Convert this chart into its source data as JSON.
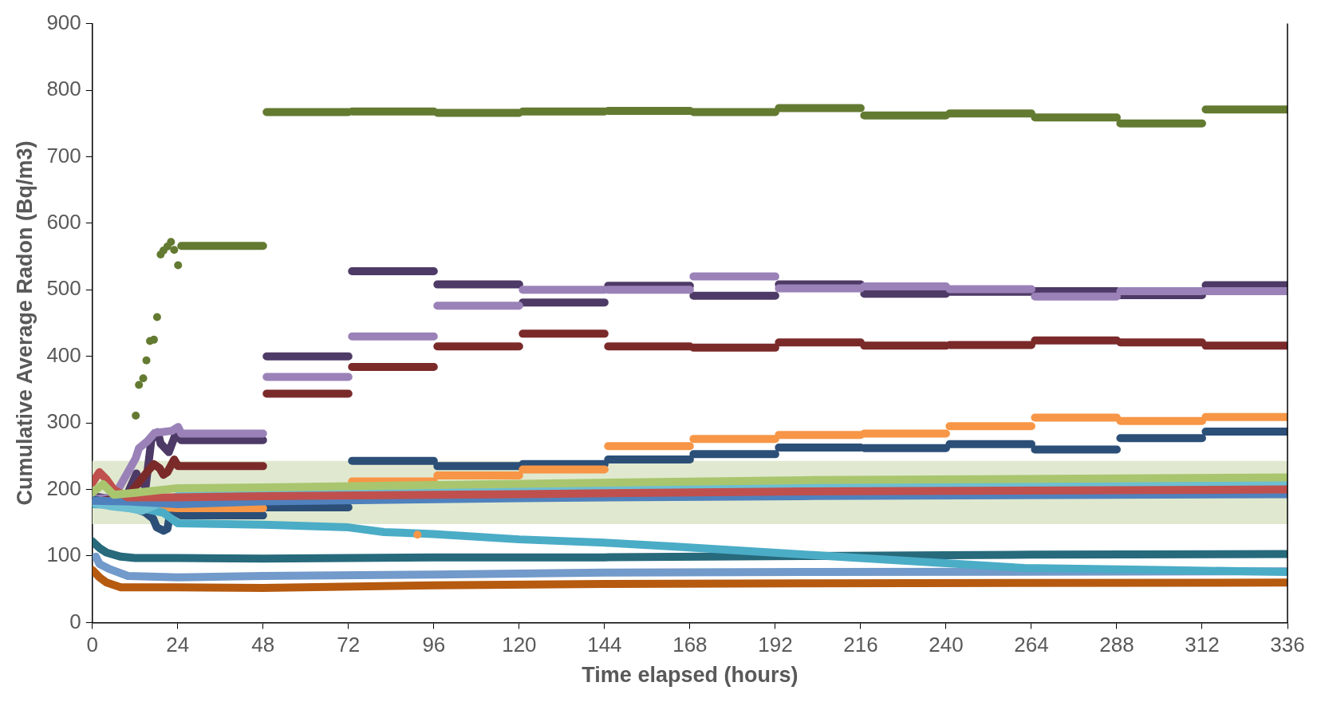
{
  "chart_data": {
    "type": "line",
    "xlabel": "Time elapsed (hours)",
    "ylabel": "Cumulative Average Radon (Bq/m3)",
    "xlim": [
      0,
      336
    ],
    "xticks": [
      0,
      24,
      48,
      72,
      96,
      120,
      144,
      168,
      192,
      216,
      240,
      264,
      288,
      312,
      336
    ],
    "ylim": [
      0,
      900
    ],
    "yticks": [
      0,
      100,
      200,
      300,
      400,
      500,
      600,
      700,
      800,
      900
    ],
    "marker": "none",
    "legend": false,
    "bands": [
      {
        "axis": "y",
        "from": 148,
        "to": 243,
        "color": "#e0e9cf"
      }
    ],
    "series": [
      {
        "type": "scatter",
        "marker": "circle",
        "color": "#f79646",
        "x": [
          91.4
        ],
        "values": [
          132
        ]
      },
      {
        "color": "#a9c66f",
        "x": [
          0,
          3,
          6,
          12,
          24,
          48,
          100,
          200,
          336
        ],
        "values": [
          195,
          208,
          192,
          195,
          202,
          203,
          207,
          214,
          218
        ]
      },
      {
        "color": "#c0504d",
        "x": [
          0,
          2,
          4,
          6,
          10,
          24,
          48,
          120,
          200,
          336
        ],
        "values": [
          210,
          226,
          215,
          200,
          188,
          188,
          190,
          193,
          197,
          200
        ]
      },
      {
        "color": "#4f81bd",
        "x": [
          0,
          10,
          24,
          48,
          120,
          200,
          336
        ],
        "values": [
          183,
          182,
          178,
          182,
          187,
          190,
          193
        ]
      },
      {
        "color": "#6dbfd2",
        "x": [
          0,
          5,
          10,
          14,
          24,
          48,
          96,
          200,
          336
        ],
        "values": [
          180,
          175,
          172,
          168,
          190,
          195,
          200,
          204,
          207
        ]
      },
      {
        "color": "#4bacc6",
        "x": [
          0,
          10,
          20,
          24,
          48,
          72,
          82,
          96,
          120,
          144,
          164,
          213,
          262,
          300,
          336
        ],
        "values": [
          178,
          176,
          165,
          149,
          147,
          143,
          136,
          133,
          125,
          120,
          114,
          98,
          82,
          79,
          76
        ]
      },
      {
        "color": "#276a7c",
        "x": [
          0,
          2,
          4,
          8,
          12,
          24,
          48,
          96,
          144,
          200,
          264,
          336
        ],
        "values": [
          122,
          112,
          105,
          99,
          97,
          97,
          96,
          98,
          98,
          100,
          102,
          103
        ]
      },
      {
        "color": "#729aca",
        "x": [
          1,
          2,
          5,
          10,
          24,
          48,
          96,
          144,
          200,
          336
        ],
        "values": [
          99,
          88,
          80,
          70,
          68,
          70,
          72,
          75,
          76,
          77
        ]
      },
      {
        "color": "#b65a10",
        "x": [
          0,
          2,
          4,
          8,
          24,
          48,
          96,
          144,
          200,
          336
        ],
        "values": [
          79,
          68,
          60,
          53,
          53,
          52,
          56,
          58,
          59,
          60
        ]
      },
      {
        "color": "#f79646",
        "x": [
          17.7,
          24,
          25,
          48,
          48.5,
          49,
          72,
          72.5,
          73,
          96,
          96.5,
          97,
          120,
          120.5,
          121,
          144,
          144.5,
          145,
          168,
          168.5,
          169,
          192,
          192.5,
          193,
          216,
          216.5,
          217,
          240,
          240.5,
          241,
          264,
          264.5,
          265,
          288,
          288.5,
          289,
          312,
          312.5,
          313,
          336
        ],
        "values": [
          174,
          172,
          172,
          172,
          null,
          null,
          null,
          null,
          212,
          212,
          null,
          221,
          221,
          null,
          230,
          230,
          null,
          265,
          265,
          null,
          276,
          276,
          null,
          282,
          282,
          null,
          284,
          284,
          null,
          295,
          295,
          null,
          308,
          308,
          null,
          303,
          303,
          null,
          309,
          309
        ]
      },
      {
        "color": "#2c4f78",
        "x": [
          0,
          5,
          10,
          14.7,
          17.1,
          18.1,
          20,
          21.1,
          21.9,
          23.4,
          25,
          48,
          48.5,
          49,
          72,
          72.5,
          73,
          96,
          96.5,
          97,
          120,
          120.5,
          121,
          144,
          144.5,
          145,
          168,
          168.5,
          169,
          192,
          192.5,
          193,
          216,
          216.5,
          217,
          240,
          240.5,
          241,
          264,
          264.5,
          265,
          288,
          288.5,
          289,
          312,
          312.5,
          313,
          336
        ],
        "values": [
          185,
          180,
          175,
          166,
          156,
          143,
          138,
          141,
          164,
          166,
          161,
          161,
          null,
          173,
          173,
          null,
          243,
          243,
          null,
          235,
          235,
          null,
          238,
          238,
          null,
          245,
          245,
          null,
          253,
          253,
          null,
          263,
          263,
          null,
          262,
          262,
          null,
          268,
          268,
          null,
          260,
          260,
          null,
          277,
          277,
          null,
          287,
          287
        ]
      },
      {
        "color": "#7b2a2a",
        "x": [
          0,
          10,
          15.8,
          17.3,
          18.9,
          20,
          21.1,
          23,
          24.1,
          25,
          48,
          48.5,
          49,
          72,
          72.5,
          73,
          96,
          96.5,
          97,
          120,
          120.5,
          121,
          144,
          144.5,
          145,
          168,
          168.5,
          169,
          192,
          192.5,
          193,
          216,
          216.5,
          217,
          240,
          240.5,
          241,
          264,
          264.5,
          265,
          288,
          288.5,
          289,
          312,
          312.5,
          313,
          336
        ],
        "values": [
          180,
          190,
          229,
          238,
          232,
          222,
          226,
          245,
          235,
          235,
          235,
          null,
          344,
          344,
          null,
          384,
          384,
          null,
          415,
          415,
          null,
          434,
          434,
          null,
          415,
          415,
          null,
          413,
          413,
          null,
          421,
          421,
          null,
          416,
          416,
          null,
          417,
          417,
          null,
          424,
          424,
          null,
          421,
          421,
          null,
          416,
          416
        ]
      },
      {
        "color": "#9a82b8",
        "x": [
          0,
          6,
          12.2,
          13.1,
          15.4,
          17.5,
          22.3,
          24.1,
          25,
          48,
          48.5,
          49,
          72,
          72.5,
          73,
          96,
          96.5,
          97,
          120,
          120.5,
          121,
          144,
          144.5,
          145,
          168,
          168.5,
          169,
          192,
          192.5,
          193,
          216,
          216.5,
          217,
          240,
          240.5,
          241,
          264,
          264.5,
          265,
          288,
          288.5,
          289,
          312,
          312.5,
          313,
          336
        ],
        "values": [
          185,
          188,
          247,
          262,
          272,
          285,
          288,
          294,
          284,
          284,
          null,
          369,
          369,
          null,
          430,
          430,
          null,
          476,
          476,
          null,
          500,
          500,
          null,
          500,
          500,
          null,
          520,
          520,
          null,
          502,
          502,
          null,
          505,
          505,
          null,
          501,
          501,
          null,
          490,
          490,
          null,
          498,
          498,
          null,
          498,
          498
        ]
      },
      {
        "color": "#4e3a66",
        "x": [
          0,
          6,
          10,
          12.4,
          13.3,
          15,
          16.6,
          18.4,
          19.2,
          21.5,
          23.4,
          25,
          48,
          48.5,
          49,
          72,
          72.5,
          73,
          96,
          96.5,
          97,
          120,
          120.5,
          121,
          144,
          144.5,
          145,
          168,
          168.5,
          169,
          192,
          192.5,
          193,
          216,
          216.5,
          217,
          240,
          240.5,
          241,
          264,
          264.5,
          265,
          288,
          288.5,
          289,
          312,
          312.5,
          313,
          336
        ],
        "values": [
          190,
          185,
          195,
          224,
          212,
          205,
          275,
          286,
          269,
          256,
          283,
          274,
          274,
          null,
          400,
          400,
          null,
          528,
          528,
          null,
          508,
          508,
          null,
          481,
          481,
          null,
          506,
          506,
          null,
          491,
          491,
          null,
          508,
          508,
          null,
          494,
          494,
          null,
          497,
          497,
          null,
          498,
          498,
          null,
          492,
          492,
          null,
          507,
          507
        ]
      },
      {
        "type": "scatter",
        "marker": "circle",
        "color": "#637a31",
        "x": [
          12.2,
          13.1,
          14.3,
          15.2,
          16.2,
          17.3,
          18.2,
          19.2,
          20,
          21.1,
          22.1,
          23,
          24.1
        ],
        "values": [
          311,
          357,
          367,
          394,
          423,
          425,
          459,
          553,
          559,
          565,
          572,
          560,
          537
        ]
      },
      {
        "color": "#637a31",
        "x": [
          25,
          48,
          48.5,
          49,
          72,
          72.5,
          73,
          96,
          96.5,
          97,
          120,
          120.5,
          121,
          144,
          144.5,
          145,
          168,
          168.5,
          169,
          192,
          192.5,
          193,
          216,
          216.5,
          217,
          240,
          240.5,
          241,
          264,
          264.5,
          265,
          288,
          288.5,
          289,
          312,
          312.5,
          313,
          336
        ],
        "values": [
          566,
          566,
          null,
          767,
          767,
          null,
          768,
          768,
          null,
          766,
          766,
          null,
          768,
          768,
          null,
          769,
          769,
          null,
          767,
          767,
          null,
          773,
          773,
          null,
          762,
          762,
          null,
          765,
          765,
          null,
          759,
          759,
          null,
          750,
          750,
          null,
          771,
          771
        ]
      }
    ]
  }
}
